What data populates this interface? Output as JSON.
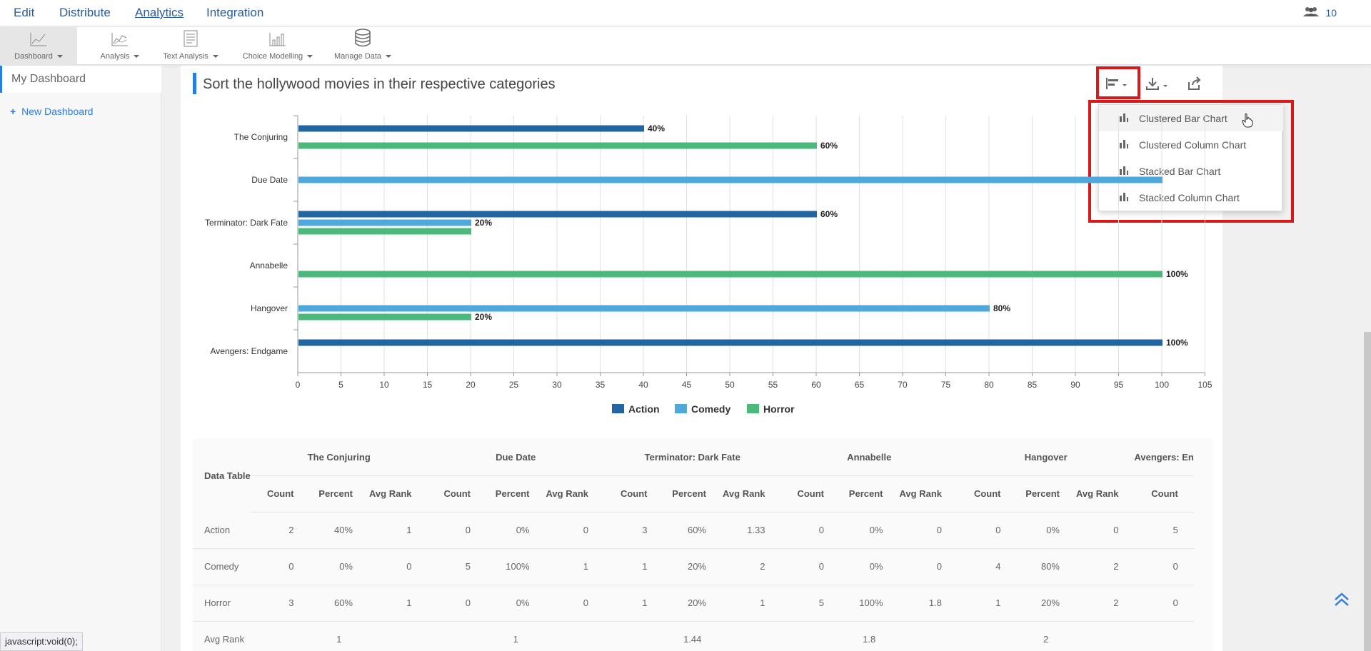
{
  "topmenu": {
    "items": [
      "Edit",
      "Distribute",
      "Analytics",
      "Integration"
    ],
    "active": "Analytics",
    "user_count": "10"
  },
  "toolbar": {
    "items": [
      {
        "label": "Dashboard",
        "icon": "line-chart-icon"
      },
      {
        "label": "Analysis",
        "icon": "analysis-icon"
      },
      {
        "label": "Text Analysis",
        "icon": "text-analysis-icon"
      },
      {
        "label": "Choice Modelling",
        "icon": "choice-modelling-icon"
      },
      {
        "label": "Manage Data",
        "icon": "database-icon"
      }
    ]
  },
  "sidebar": {
    "my_dashboard": "My Dashboard",
    "new_dashboard": "New Dashboard"
  },
  "panel": {
    "title": "Sort the hollywood movies in their respective categories"
  },
  "dropdown": {
    "items": [
      "Clustered Bar Chart",
      "Clustered Column Chart",
      "Stacked Bar Chart",
      "Stacked Column Chart"
    ]
  },
  "colors": {
    "action": "#2166a0",
    "comedy": "#4fa8dc",
    "horror": "#4cb87c",
    "highlight": "#d7191c"
  },
  "chart_data": {
    "type": "bar",
    "orientation": "horizontal",
    "categories": [
      "The Conjuring",
      "Due Date",
      "Terminator: Dark Fate",
      "Annabelle",
      "Hangover",
      "Avengers: Endgame"
    ],
    "series": [
      {
        "name": "Action",
        "values": [
          40,
          0,
          60,
          0,
          0,
          100
        ]
      },
      {
        "name": "Comedy",
        "values": [
          0,
          100,
          20,
          0,
          80,
          0
        ]
      },
      {
        "name": "Horror",
        "values": [
          60,
          0,
          20,
          100,
          20,
          0
        ]
      }
    ],
    "data_labels": [
      {
        "category": "The Conjuring",
        "series": "Action",
        "text": "40%"
      },
      {
        "category": "The Conjuring",
        "series": "Horror",
        "text": "60%"
      },
      {
        "category": "Terminator: Dark Fate",
        "series": "Action",
        "text": "60%"
      },
      {
        "category": "Terminator: Dark Fate",
        "series": "Comedy",
        "text": "20%"
      },
      {
        "category": "Annabelle",
        "series": "Horror",
        "text": "100%"
      },
      {
        "category": "Hangover",
        "series": "Comedy",
        "text": "80%"
      },
      {
        "category": "Hangover",
        "series": "Horror",
        "text": "20%"
      },
      {
        "category": "Avengers: Endgame",
        "series": "Action",
        "text": "100%"
      }
    ],
    "xticks": [
      0,
      5,
      10,
      15,
      20,
      25,
      30,
      35,
      40,
      45,
      50,
      55,
      60,
      65,
      70,
      75,
      80,
      85,
      90,
      95,
      100,
      105
    ],
    "xlim": [
      0,
      105
    ],
    "grid": true,
    "legend": "bottom"
  },
  "table": {
    "corner_label": "Data Table",
    "movies": [
      "The Conjuring",
      "Due Date",
      "Terminator: Dark Fate",
      "Annabelle",
      "Hangover",
      "Avengers: En"
    ],
    "subheaders": [
      "Count",
      "Percent",
      "Avg Rank",
      "Count",
      "Percent",
      "Avg Rank",
      "Count",
      "Percent",
      "Avg Rank",
      "Count",
      "Percent",
      "Avg Rank",
      "Count",
      "Percent",
      "Avg Rank",
      "Count"
    ],
    "rows": [
      {
        "label": "Action",
        "cells": [
          "2",
          "40%",
          "1",
          "0",
          "0%",
          "0",
          "3",
          "60%",
          "1.33",
          "0",
          "0%",
          "0",
          "0",
          "0%",
          "0",
          "5"
        ]
      },
      {
        "label": "Comedy",
        "cells": [
          "0",
          "0%",
          "0",
          "5",
          "100%",
          "1",
          "1",
          "20%",
          "2",
          "0",
          "0%",
          "0",
          "4",
          "80%",
          "2",
          "0"
        ]
      },
      {
        "label": "Horror",
        "cells": [
          "3",
          "60%",
          "1",
          "0",
          "0%",
          "0",
          "1",
          "20%",
          "1",
          "5",
          "100%",
          "1.8",
          "1",
          "20%",
          "2",
          "0"
        ]
      }
    ],
    "avg_rank_label": "Avg Rank",
    "avg_rank_values": [
      "1",
      "1",
      "1.44",
      "1.8",
      "2"
    ]
  },
  "statusbar": "javascript:void(0);"
}
